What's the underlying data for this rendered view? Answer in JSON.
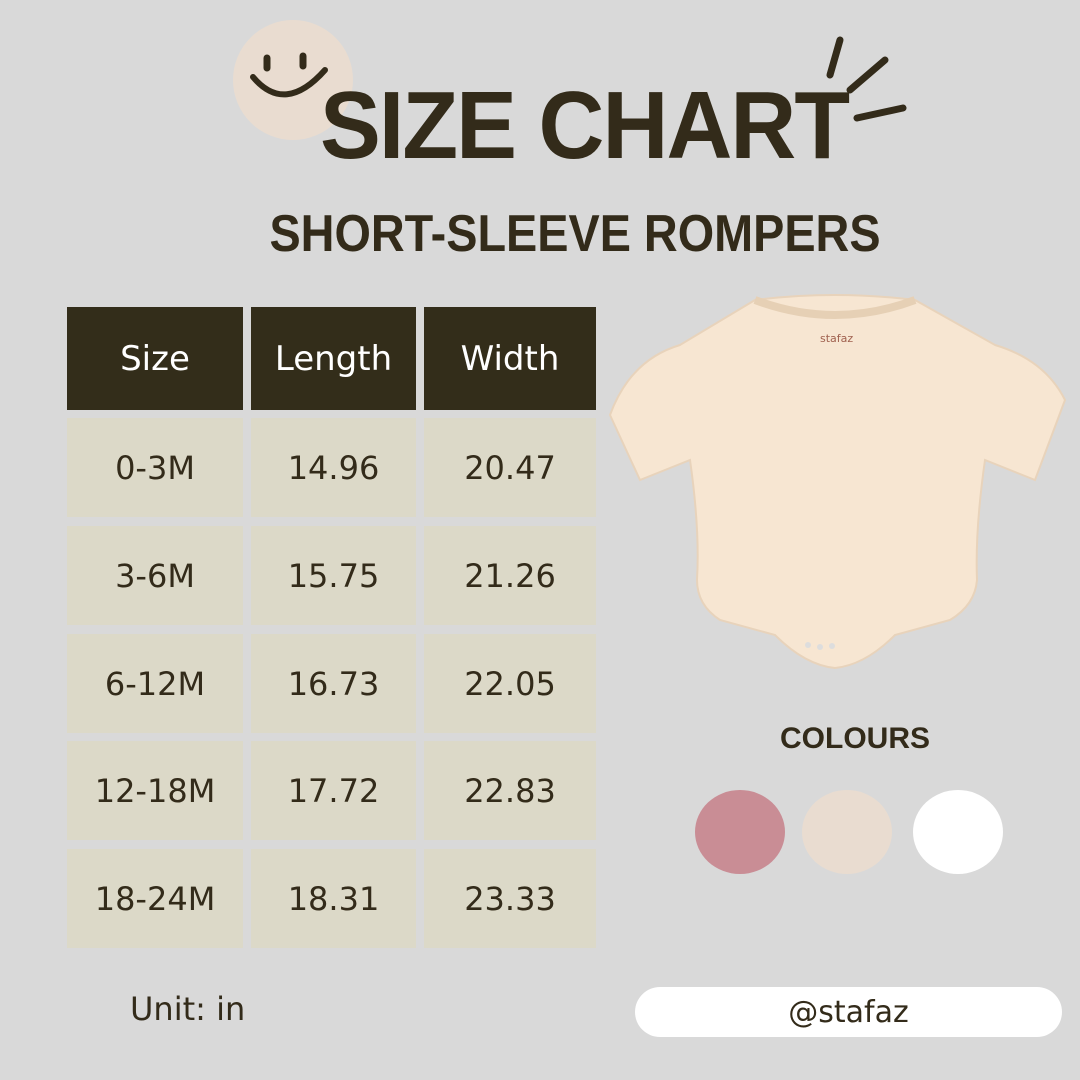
{
  "header": {
    "title": "SIZE CHART",
    "subtitle": "SHORT-SLEEVE ROMPERS"
  },
  "table": {
    "columns": [
      "Size",
      "Length",
      "Width"
    ],
    "rows": [
      [
        "0-3M",
        "14.96",
        "20.47"
      ],
      [
        "3-6M",
        "15.75",
        "21.26"
      ],
      [
        "6-12M",
        "16.73",
        "22.05"
      ],
      [
        "12-18M",
        "17.72",
        "22.83"
      ],
      [
        "18-24M",
        "18.31",
        "23.33"
      ]
    ]
  },
  "unit_label": "Unit: in",
  "product": {
    "label_text": "stafaz",
    "color": "#f7e6d2"
  },
  "colours": {
    "title": "COLOURS",
    "swatches": [
      "#c98d95",
      "#e9dcd0",
      "#ffffff"
    ]
  },
  "handle": "@stafaz",
  "decor": {
    "smiley_bg": "#e9dcd0"
  }
}
